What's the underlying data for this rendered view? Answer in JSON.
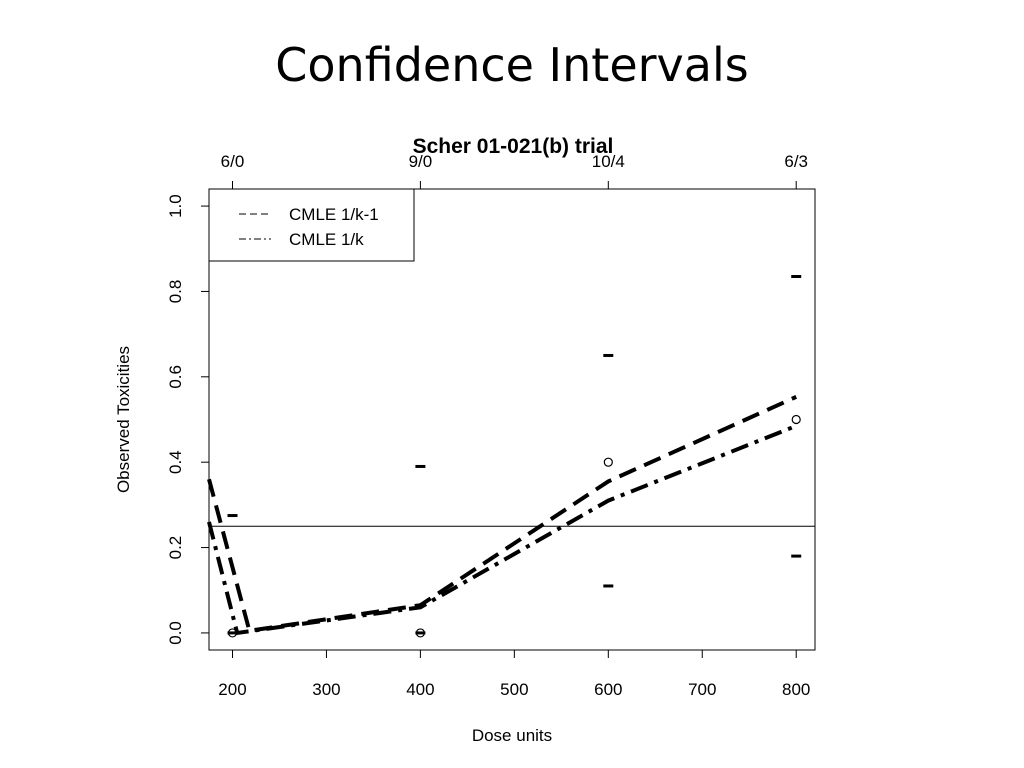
{
  "slide": {
    "title": "Confidence Intervals"
  },
  "chart_data": {
    "type": "line",
    "title": "Scher 01-021(b) trial",
    "xlabel": "Dose units",
    "ylabel": "Observed Toxicities",
    "xlim": [
      175,
      820
    ],
    "ylim": [
      -0.04,
      1.04
    ],
    "x_ticks": [
      200,
      300,
      400,
      500,
      600,
      700,
      800
    ],
    "y_ticks": [
      0.0,
      0.2,
      0.4,
      0.6,
      0.8,
      1.0
    ],
    "y_tick_labels": [
      "0.0",
      "0.2",
      "0.4",
      "0.6",
      "0.8",
      "1.0"
    ],
    "top_axis": {
      "positions": [
        200,
        400,
        600,
        800
      ],
      "labels": [
        "6/0",
        "9/0",
        "10/4",
        "6/3"
      ]
    },
    "reference_line": {
      "y": 0.25
    },
    "observed_points": {
      "x": [
        200,
        400,
        600,
        800
      ],
      "y": [
        0.0,
        0.0,
        0.4,
        0.5
      ]
    },
    "ci_lower": {
      "x": [
        200,
        400,
        600,
        800
      ],
      "y": [
        0.0,
        0.0,
        0.11,
        0.18
      ]
    },
    "ci_upper": {
      "x": [
        200,
        400,
        600,
        800
      ],
      "y": [
        0.275,
        0.39,
        0.65,
        0.835
      ]
    },
    "series": [
      {
        "name": "CMLE 1/k-1",
        "style": "dashed",
        "x": [
          175,
          218,
          400,
          600,
          800
        ],
        "y": [
          0.36,
          0.005,
          0.065,
          0.355,
          0.553
        ]
      },
      {
        "name": "CMLE 1/k",
        "style": "dashdot",
        "x": [
          175,
          205,
          400,
          600,
          800
        ],
        "y": [
          0.26,
          0.0,
          0.06,
          0.31,
          0.485
        ]
      }
    ],
    "legend": {
      "position": "top-left",
      "entries": [
        "CMLE 1/k-1",
        "CMLE 1/k"
      ]
    },
    "colors": {
      "lines": "#000000",
      "background": "#ffffff"
    }
  }
}
